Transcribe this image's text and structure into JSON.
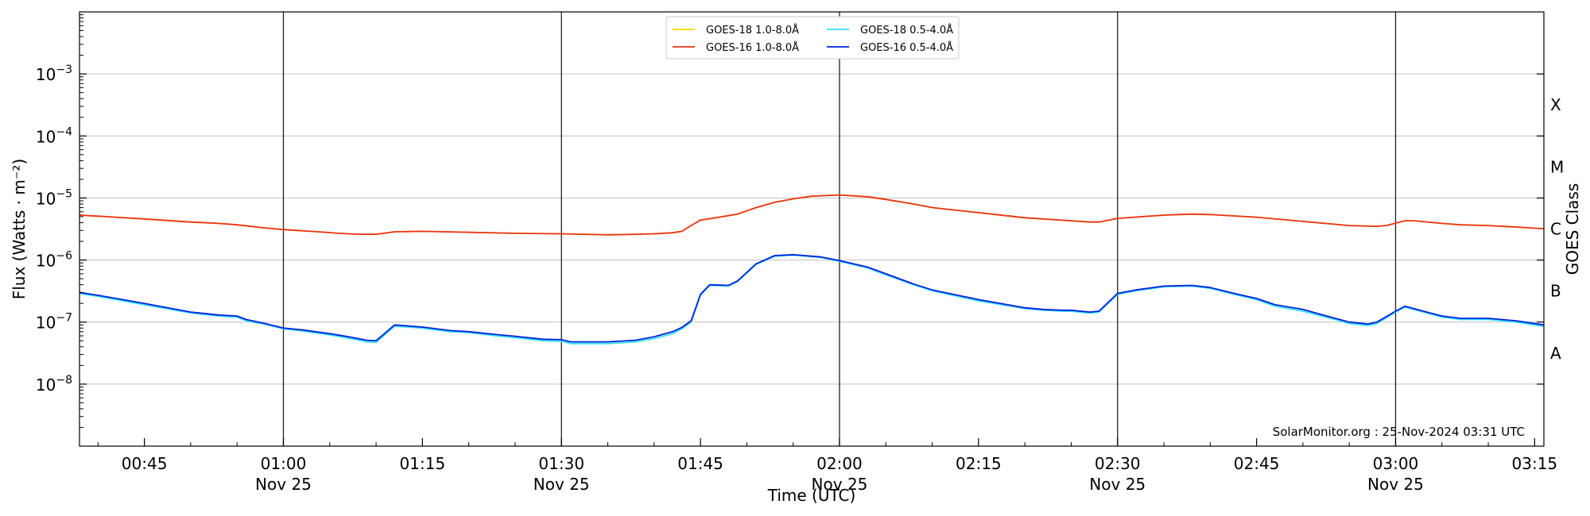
{
  "chart_data": {
    "type": "line",
    "xlabel": "Time (UTC)",
    "ylabel": "Flux (Watts · m⁻²)",
    "ylabel_right": "GOES Class",
    "yscale": "log",
    "ylim": [
      1e-09,
      0.01
    ],
    "xlim": [
      "2024-11-25 00:38",
      "2024-11-25 03:16"
    ],
    "grid": "horizontal at decades; vertical at half-hours",
    "y_ticks": [
      {
        "exp": "−8",
        "value": 1e-08
      },
      {
        "exp": "−7",
        "value": 1e-07
      },
      {
        "exp": "−6",
        "value": 1e-06
      },
      {
        "exp": "−5",
        "value": 1e-05
      },
      {
        "exp": "−4",
        "value": 0.0001
      },
      {
        "exp": "−3",
        "value": 0.001
      }
    ],
    "x_ticks": [
      {
        "time": "00:45",
        "date": ""
      },
      {
        "time": "01:00",
        "date": "Nov 25"
      },
      {
        "time": "01:15",
        "date": ""
      },
      {
        "time": "01:30",
        "date": "Nov 25"
      },
      {
        "time": "01:45",
        "date": ""
      },
      {
        "time": "02:00",
        "date": "Nov 25"
      },
      {
        "time": "02:15",
        "date": ""
      },
      {
        "time": "02:30",
        "date": "Nov 25"
      },
      {
        "time": "02:45",
        "date": ""
      },
      {
        "time": "03:00",
        "date": "Nov 25"
      },
      {
        "time": "03:15",
        "date": ""
      }
    ],
    "goes_classes": [
      {
        "label": "A",
        "value": 3.16e-08
      },
      {
        "label": "B",
        "value": 3.16e-07
      },
      {
        "label": "C",
        "value": 3.16e-06
      },
      {
        "label": "M",
        "value": 3.16e-05
      },
      {
        "label": "X",
        "value": 0.000316
      }
    ],
    "legend_placement": "top-center",
    "credit": "SolarMonitor.org : 25-Nov-2024 03:31 UTC",
    "series": [
      {
        "name": "GOES-18 1.0-8.0Å",
        "color": "#ffd700",
        "points": [
          [
            "00:38",
            5.3e-06
          ],
          [
            "00:40",
            5.1e-06
          ],
          [
            "00:45",
            4.6e-06
          ],
          [
            "00:50",
            4.1e-06
          ],
          [
            "00:53",
            3.9e-06
          ],
          [
            "00:55",
            3.7e-06
          ],
          [
            "00:58",
            3.3e-06
          ],
          [
            "01:00",
            3.1e-06
          ],
          [
            "01:03",
            2.9e-06
          ],
          [
            "01:06",
            2.7e-06
          ],
          [
            "01:08",
            2.6e-06
          ],
          [
            "01:10",
            2.6e-06
          ],
          [
            "01:12",
            2.85e-06
          ],
          [
            "01:15",
            2.9e-06
          ],
          [
            "01:20",
            2.8e-06
          ],
          [
            "01:25",
            2.7e-06
          ],
          [
            "01:30",
            2.65e-06
          ],
          [
            "01:35",
            2.55e-06
          ],
          [
            "01:38",
            2.6e-06
          ],
          [
            "01:40",
            2.65e-06
          ],
          [
            "01:42",
            2.75e-06
          ],
          [
            "01:43",
            2.9e-06
          ],
          [
            "01:44",
            3.6e-06
          ],
          [
            "01:45",
            4.4e-06
          ],
          [
            "01:47",
            4.9e-06
          ],
          [
            "01:49",
            5.5e-06
          ],
          [
            "01:51",
            7e-06
          ],
          [
            "01:53",
            8.5e-06
          ],
          [
            "01:55",
            9.7e-06
          ],
          [
            "01:57",
            1.07e-05
          ],
          [
            "02:00",
            1.12e-05
          ],
          [
            "02:03",
            1.05e-05
          ],
          [
            "02:05",
            9.5e-06
          ],
          [
            "02:08",
            8e-06
          ],
          [
            "02:10",
            7e-06
          ],
          [
            "02:15",
            5.8e-06
          ],
          [
            "02:20",
            4.8e-06
          ],
          [
            "02:25",
            4.3e-06
          ],
          [
            "02:27",
            4.1e-06
          ],
          [
            "02:28",
            4.1e-06
          ],
          [
            "02:30",
            4.7e-06
          ],
          [
            "02:35",
            5.3e-06
          ],
          [
            "02:38",
            5.5e-06
          ],
          [
            "02:40",
            5.4e-06
          ],
          [
            "02:45",
            4.9e-06
          ],
          [
            "02:50",
            4.2e-06
          ],
          [
            "02:55",
            3.6e-06
          ],
          [
            "02:58",
            3.5e-06
          ],
          [
            "02:59",
            3.6e-06
          ],
          [
            "03:01",
            4.3e-06
          ],
          [
            "03:02",
            4.3e-06
          ],
          [
            "03:05",
            3.9e-06
          ],
          [
            "03:07",
            3.7e-06
          ],
          [
            "03:10",
            3.6e-06
          ],
          [
            "03:13",
            3.4e-06
          ],
          [
            "03:16",
            3.2e-06
          ]
        ]
      },
      {
        "name": "GOES-16 1.0-8.0Å",
        "color": "#e8331b",
        "points": [
          [
            "00:38",
            5.3e-06
          ],
          [
            "00:40",
            5.1e-06
          ],
          [
            "00:45",
            4.6e-06
          ],
          [
            "00:50",
            4.1e-06
          ],
          [
            "00:53",
            3.9e-06
          ],
          [
            "00:55",
            3.7e-06
          ],
          [
            "00:58",
            3.3e-06
          ],
          [
            "01:00",
            3.1e-06
          ],
          [
            "01:03",
            2.9e-06
          ],
          [
            "01:06",
            2.7e-06
          ],
          [
            "01:08",
            2.6e-06
          ],
          [
            "01:10",
            2.6e-06
          ],
          [
            "01:12",
            2.85e-06
          ],
          [
            "01:15",
            2.9e-06
          ],
          [
            "01:20",
            2.8e-06
          ],
          [
            "01:25",
            2.7e-06
          ],
          [
            "01:30",
            2.65e-06
          ],
          [
            "01:35",
            2.55e-06
          ],
          [
            "01:38",
            2.6e-06
          ],
          [
            "01:40",
            2.65e-06
          ],
          [
            "01:42",
            2.75e-06
          ],
          [
            "01:43",
            2.9e-06
          ],
          [
            "01:44",
            3.6e-06
          ],
          [
            "01:45",
            4.4e-06
          ],
          [
            "01:47",
            4.9e-06
          ],
          [
            "01:49",
            5.5e-06
          ],
          [
            "01:51",
            7e-06
          ],
          [
            "01:53",
            8.5e-06
          ],
          [
            "01:55",
            9.7e-06
          ],
          [
            "01:57",
            1.07e-05
          ],
          [
            "02:00",
            1.12e-05
          ],
          [
            "02:03",
            1.05e-05
          ],
          [
            "02:05",
            9.5e-06
          ],
          [
            "02:08",
            8e-06
          ],
          [
            "02:10",
            7e-06
          ],
          [
            "02:15",
            5.8e-06
          ],
          [
            "02:20",
            4.8e-06
          ],
          [
            "02:25",
            4.3e-06
          ],
          [
            "02:27",
            4.1e-06
          ],
          [
            "02:28",
            4.1e-06
          ],
          [
            "02:30",
            4.7e-06
          ],
          [
            "02:35",
            5.3e-06
          ],
          [
            "02:38",
            5.5e-06
          ],
          [
            "02:40",
            5.4e-06
          ],
          [
            "02:45",
            4.9e-06
          ],
          [
            "02:50",
            4.2e-06
          ],
          [
            "02:55",
            3.6e-06
          ],
          [
            "02:58",
            3.5e-06
          ],
          [
            "02:59",
            3.6e-06
          ],
          [
            "03:01",
            4.3e-06
          ],
          [
            "03:02",
            4.3e-06
          ],
          [
            "03:05",
            3.9e-06
          ],
          [
            "03:07",
            3.7e-06
          ],
          [
            "03:10",
            3.6e-06
          ],
          [
            "03:13",
            3.4e-06
          ],
          [
            "03:16",
            3.2e-06
          ]
        ]
      },
      {
        "name": "GOES-18 0.5-4.0Å",
        "color": "#33e0f0",
        "points": [
          [
            "00:38",
            2.9e-07
          ],
          [
            "00:40",
            2.6e-07
          ],
          [
            "00:45",
            1.9e-07
          ],
          [
            "00:50",
            1.4e-07
          ],
          [
            "00:53",
            1.25e-07
          ],
          [
            "00:55",
            1.2e-07
          ],
          [
            "00:56",
            1.05e-07
          ],
          [
            "00:58",
            9.2e-08
          ],
          [
            "01:00",
            7.8e-08
          ],
          [
            "01:02",
            7.2e-08
          ],
          [
            "01:05",
            6.2e-08
          ],
          [
            "01:07",
            5.5e-08
          ],
          [
            "01:09",
            4.8e-08
          ],
          [
            "01:10",
            4.7e-08
          ],
          [
            "01:12",
            8.6e-08
          ],
          [
            "01:15",
            8e-08
          ],
          [
            "01:18",
            7e-08
          ],
          [
            "01:20",
            6.8e-08
          ],
          [
            "01:23",
            6e-08
          ],
          [
            "01:25",
            5.6e-08
          ],
          [
            "01:28",
            5e-08
          ],
          [
            "01:30",
            4.9e-08
          ],
          [
            "01:31",
            4.5e-08
          ],
          [
            "01:32",
            4.5e-08
          ],
          [
            "01:35",
            4.5e-08
          ],
          [
            "01:38",
            4.8e-08
          ],
          [
            "01:40",
            5.4e-08
          ],
          [
            "01:42",
            6.5e-08
          ],
          [
            "01:43",
            7.8e-08
          ],
          [
            "01:44",
            1e-07
          ],
          [
            "01:45",
            2.7e-07
          ],
          [
            "01:46",
            3.9e-07
          ],
          [
            "01:48",
            3.8e-07
          ],
          [
            "01:49",
            4.5e-07
          ],
          [
            "01:51",
            8.5e-07
          ],
          [
            "01:53",
            1.15e-06
          ],
          [
            "01:55",
            1.2e-06
          ],
          [
            "01:58",
            1.1e-06
          ],
          [
            "02:00",
            9.5e-07
          ],
          [
            "02:03",
            7.5e-07
          ],
          [
            "02:05",
            5.8e-07
          ],
          [
            "02:08",
            4e-07
          ],
          [
            "02:10",
            3.2e-07
          ],
          [
            "02:15",
            2.2e-07
          ],
          [
            "02:20",
            1.65e-07
          ],
          [
            "02:22",
            1.55e-07
          ],
          [
            "02:24",
            1.5e-07
          ],
          [
            "02:25",
            1.5e-07
          ],
          [
            "02:27",
            1.4e-07
          ],
          [
            "02:28",
            1.45e-07
          ],
          [
            "02:30",
            2.8e-07
          ],
          [
            "02:32",
            3.2e-07
          ],
          [
            "02:35",
            3.7e-07
          ],
          [
            "02:38",
            3.8e-07
          ],
          [
            "02:40",
            3.5e-07
          ],
          [
            "02:43",
            2.7e-07
          ],
          [
            "02:45",
            2.3e-07
          ],
          [
            "02:47",
            1.8e-07
          ],
          [
            "02:50",
            1.5e-07
          ],
          [
            "02:53",
            1.15e-07
          ],
          [
            "02:55",
            9.5e-08
          ],
          [
            "02:57",
            8.8e-08
          ],
          [
            "02:58",
            9.5e-08
          ],
          [
            "03:00",
            1.45e-07
          ],
          [
            "03:01",
            1.75e-07
          ],
          [
            "03:03",
            1.45e-07
          ],
          [
            "03:05",
            1.2e-07
          ],
          [
            "03:07",
            1.1e-07
          ],
          [
            "03:10",
            1.1e-07
          ],
          [
            "03:13",
            1e-07
          ],
          [
            "03:16",
            8.5e-08
          ]
        ]
      },
      {
        "name": "GOES-16 0.5-4.0Å",
        "color": "#0022dd",
        "points": [
          [
            "00:38",
            3e-07
          ],
          [
            "00:40",
            2.7e-07
          ],
          [
            "00:45",
            2e-07
          ],
          [
            "00:50",
            1.45e-07
          ],
          [
            "00:53",
            1.3e-07
          ],
          [
            "00:55",
            1.25e-07
          ],
          [
            "00:56",
            1.1e-07
          ],
          [
            "00:58",
            9.5e-08
          ],
          [
            "01:00",
            8e-08
          ],
          [
            "01:02",
            7.5e-08
          ],
          [
            "01:05",
            6.5e-08
          ],
          [
            "01:07",
            5.8e-08
          ],
          [
            "01:09",
            5.1e-08
          ],
          [
            "01:10",
            5e-08
          ],
          [
            "01:12",
            9e-08
          ],
          [
            "01:15",
            8.3e-08
          ],
          [
            "01:18",
            7.3e-08
          ],
          [
            "01:20",
            7e-08
          ],
          [
            "01:23",
            6.3e-08
          ],
          [
            "01:25",
            5.9e-08
          ],
          [
            "01:28",
            5.3e-08
          ],
          [
            "01:30",
            5.2e-08
          ],
          [
            "01:31",
            4.8e-08
          ],
          [
            "01:32",
            4.8e-08
          ],
          [
            "01:35",
            4.8e-08
          ],
          [
            "01:38",
            5.1e-08
          ],
          [
            "01:40",
            5.8e-08
          ],
          [
            "01:42",
            7e-08
          ],
          [
            "01:43",
            8.2e-08
          ],
          [
            "01:44",
            1.05e-07
          ],
          [
            "01:45",
            2.8e-07
          ],
          [
            "01:46",
            4e-07
          ],
          [
            "01:48",
            3.9e-07
          ],
          [
            "01:49",
            4.6e-07
          ],
          [
            "01:51",
            8.7e-07
          ],
          [
            "01:53",
            1.18e-06
          ],
          [
            "01:55",
            1.22e-06
          ],
          [
            "01:58",
            1.12e-06
          ],
          [
            "02:00",
            9.8e-07
          ],
          [
            "02:03",
            7.7e-07
          ],
          [
            "02:05",
            6e-07
          ],
          [
            "02:08",
            4.1e-07
          ],
          [
            "02:10",
            3.3e-07
          ],
          [
            "02:15",
            2.3e-07
          ],
          [
            "02:20",
            1.7e-07
          ],
          [
            "02:22",
            1.6e-07
          ],
          [
            "02:24",
            1.55e-07
          ],
          [
            "02:25",
            1.55e-07
          ],
          [
            "02:27",
            1.45e-07
          ],
          [
            "02:28",
            1.5e-07
          ],
          [
            "02:30",
            2.9e-07
          ],
          [
            "02:32",
            3.3e-07
          ],
          [
            "02:35",
            3.8e-07
          ],
          [
            "02:38",
            3.9e-07
          ],
          [
            "02:40",
            3.6e-07
          ],
          [
            "02:43",
            2.8e-07
          ],
          [
            "02:45",
            2.4e-07
          ],
          [
            "02:47",
            1.9e-07
          ],
          [
            "02:50",
            1.6e-07
          ],
          [
            "02:53",
            1.2e-07
          ],
          [
            "02:55",
            1e-07
          ],
          [
            "02:57",
            9.3e-08
          ],
          [
            "02:58",
            1e-07
          ],
          [
            "03:00",
            1.5e-07
          ],
          [
            "03:01",
            1.8e-07
          ],
          [
            "03:03",
            1.5e-07
          ],
          [
            "03:05",
            1.25e-07
          ],
          [
            "03:07",
            1.15e-07
          ],
          [
            "03:10",
            1.15e-07
          ],
          [
            "03:13",
            1.05e-07
          ],
          [
            "03:16",
            9e-08
          ]
        ]
      }
    ]
  }
}
